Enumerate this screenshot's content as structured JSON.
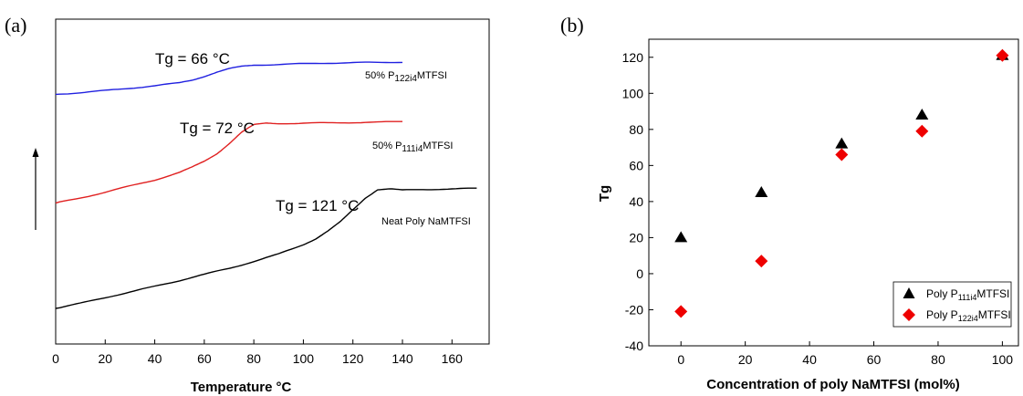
{
  "chart_data": [
    {
      "panel": "(a)",
      "type": "line",
      "xlabel": "Temperature",
      "xlabel_unit": "°C",
      "xlim": [
        0,
        175
      ],
      "xticks": [
        0,
        20,
        40,
        60,
        80,
        100,
        120,
        140,
        160
      ],
      "grid": false,
      "y_ticks_shown": false,
      "series": [
        {
          "name": "50% P122i4MTFSI",
          "name_main": "50% P",
          "name_sub": "122i4",
          "name_tail": "MTFSI",
          "color": "#2020e0",
          "tg_label": "Tg = 66 °C",
          "x": [
            0,
            10,
            20,
            30,
            40,
            50,
            55,
            60,
            65,
            70,
            75,
            80,
            90,
            100,
            110,
            120,
            130,
            140
          ],
          "y": [
            7.3,
            7.35,
            7.41,
            7.48,
            7.55,
            7.64,
            7.72,
            7.83,
            7.95,
            8.05,
            8.12,
            8.16,
            8.18,
            8.2,
            8.22,
            8.23,
            8.24,
            8.25
          ]
        },
        {
          "name": "50% P111i4MTFSI",
          "name_main": "50% P",
          "name_sub": "111i4",
          "name_tail": "MTFSI",
          "color": "#e02020",
          "tg_label": "Tg = 72 °C",
          "x": [
            0,
            10,
            20,
            30,
            40,
            50,
            55,
            60,
            65,
            70,
            75,
            80,
            85,
            90,
            100,
            110,
            120,
            130,
            140
          ],
          "y": [
            4.1,
            4.25,
            4.42,
            4.6,
            4.78,
            5.0,
            5.15,
            5.33,
            5.55,
            5.85,
            6.18,
            6.4,
            6.45,
            6.44,
            6.45,
            6.46,
            6.47,
            6.48,
            6.5
          ]
        },
        {
          "name": "Neat Poly NaMTFSI",
          "name_main": "Neat Poly NaMTFSI",
          "name_sub": "",
          "name_tail": "",
          "color": "#000000",
          "tg_label": "Tg = 121 °C",
          "x": [
            0,
            10,
            20,
            30,
            40,
            50,
            60,
            70,
            80,
            90,
            100,
            105,
            110,
            115,
            120,
            125,
            130,
            135,
            140,
            150,
            160,
            170
          ],
          "y": [
            1.0,
            1.15,
            1.32,
            1.48,
            1.65,
            1.82,
            2.0,
            2.18,
            2.38,
            2.6,
            2.88,
            3.05,
            3.28,
            3.55,
            3.9,
            4.25,
            4.5,
            4.52,
            4.48,
            4.5,
            4.52,
            4.53
          ]
        }
      ]
    },
    {
      "panel": "(b)",
      "type": "scatter",
      "xlabel": "Concentration of poly NaMTFSI (mol%)",
      "ylabel": "Tg",
      "xlim": [
        -10,
        105
      ],
      "ylim": [
        -40,
        130
      ],
      "xticks": [
        0,
        20,
        40,
        60,
        80,
        100
      ],
      "yticks": [
        -40,
        -20,
        0,
        20,
        40,
        60,
        80,
        100,
        120
      ],
      "grid": false,
      "legend_position": "bottom-right",
      "series": [
        {
          "name": "Poly P111i4MTFSI",
          "name_main": "Poly P",
          "name_sub": "111i4",
          "name_tail": "MTFSI",
          "marker": "triangle",
          "color": "#000000",
          "x": [
            0,
            25,
            50,
            75,
            100
          ],
          "y": [
            20,
            45,
            72,
            88,
            121
          ]
        },
        {
          "name": "Poly P122i4MTFSI",
          "name_main": "Poly P",
          "name_sub": "122i4",
          "name_tail": "MTFSI",
          "marker": "diamond",
          "color": "#ee0000",
          "x": [
            0,
            25,
            50,
            75,
            100
          ],
          "y": [
            -21,
            7,
            66,
            79,
            121
          ]
        }
      ]
    }
  ]
}
